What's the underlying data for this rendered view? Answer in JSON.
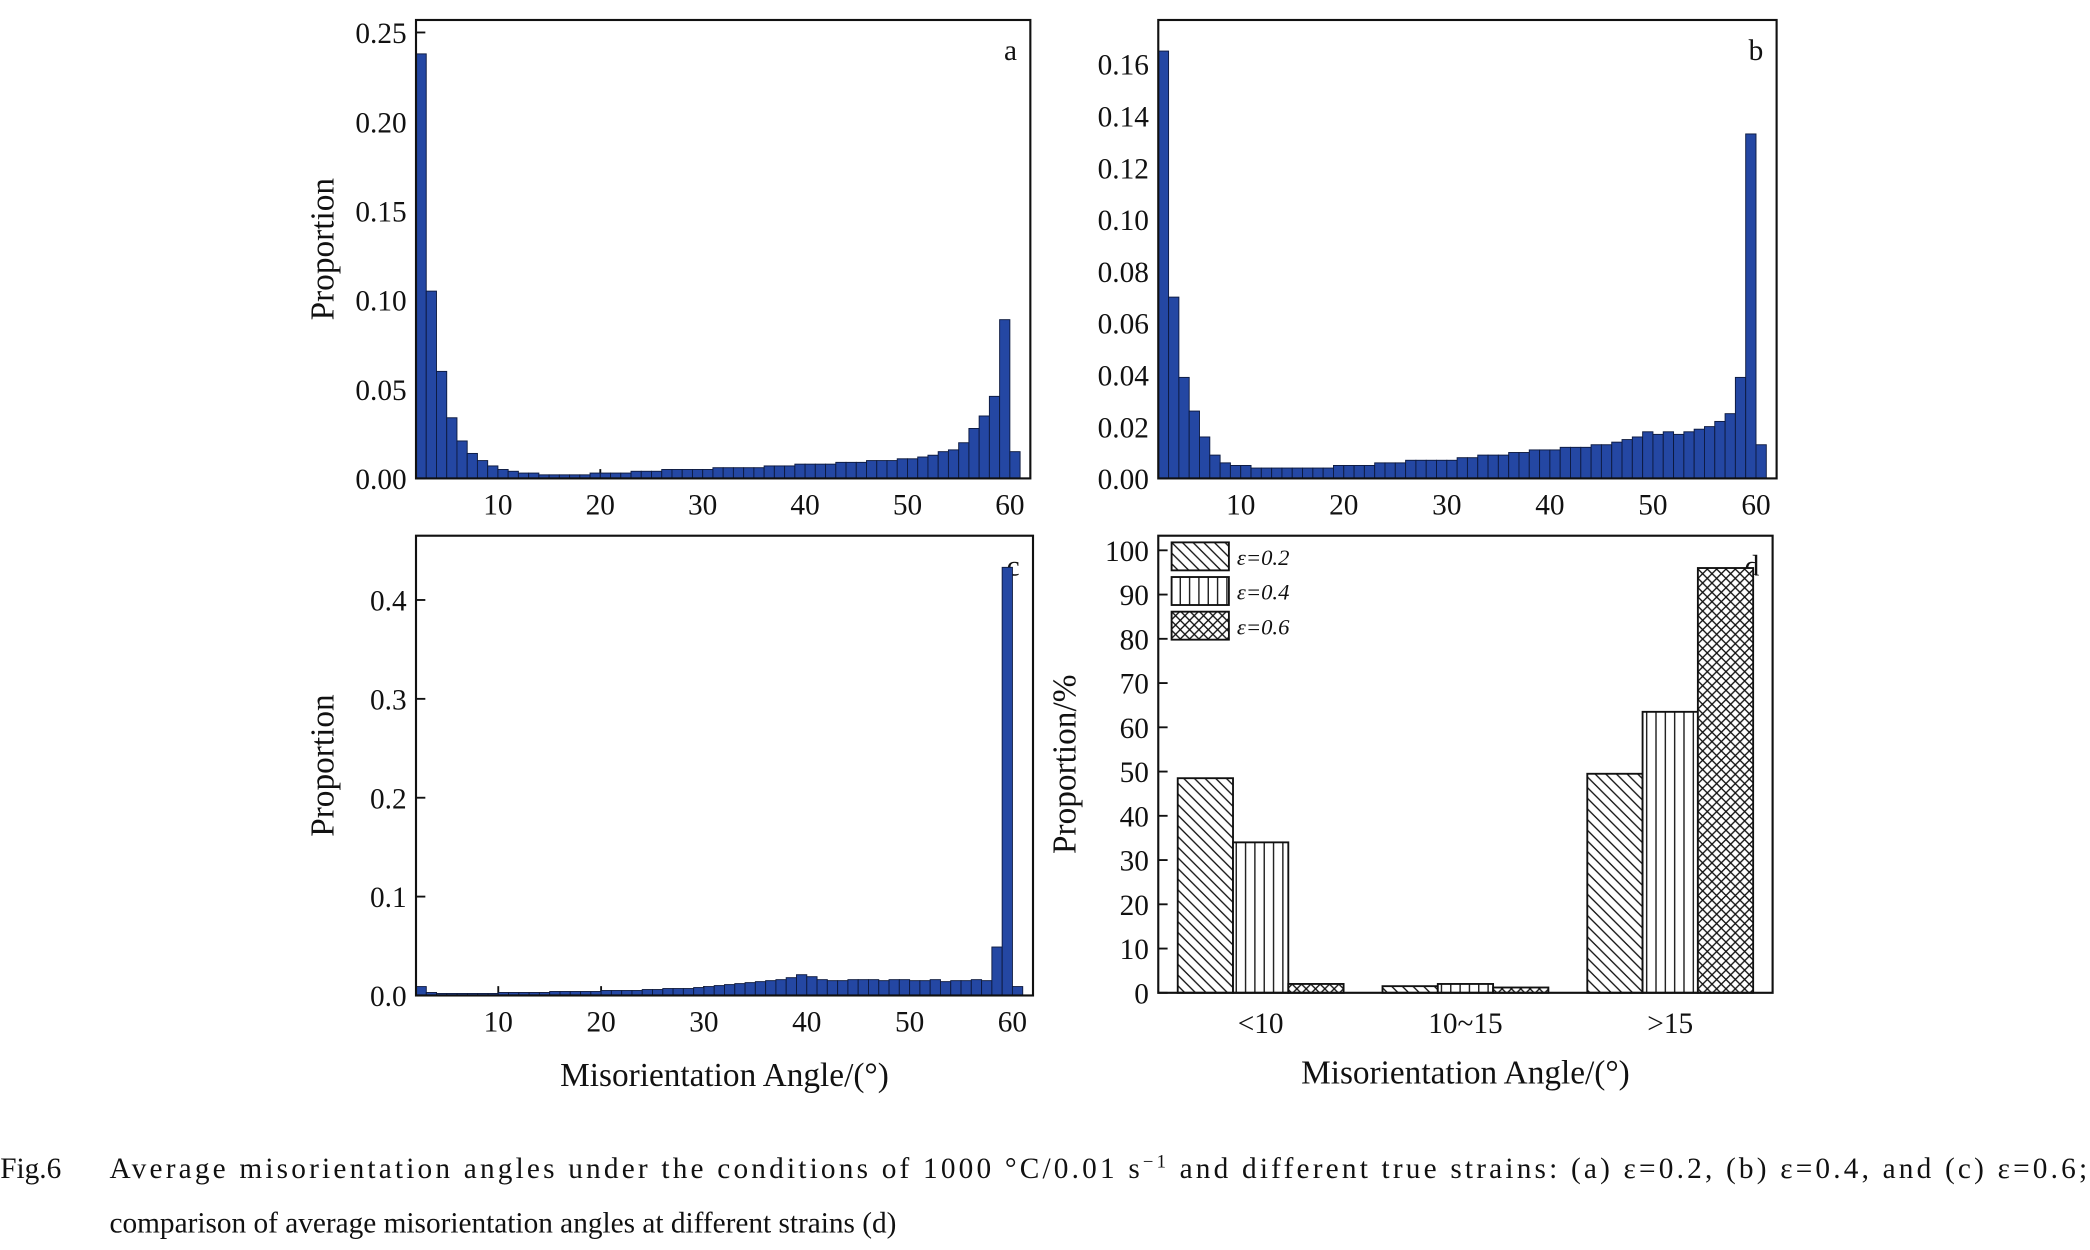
{
  "chart_data": [
    {
      "type": "histogram",
      "label": "a",
      "ylabel": "Proportion",
      "color": "#2447a3",
      "bins": [
        2,
        3,
        4,
        5,
        6,
        7,
        8,
        9,
        10,
        11,
        12,
        13,
        14,
        15,
        16,
        17,
        18,
        19,
        20,
        21,
        22,
        23,
        24,
        25,
        26,
        27,
        28,
        29,
        30,
        31,
        32,
        33,
        34,
        35,
        36,
        37,
        38,
        39,
        40,
        41,
        42,
        43,
        44,
        45,
        46,
        47,
        48,
        49,
        50,
        51,
        52,
        53,
        54,
        55,
        56,
        57,
        58,
        59,
        60,
        61
      ],
      "values": [
        0.238,
        0.105,
        0.06,
        0.034,
        0.021,
        0.014,
        0.01,
        0.007,
        0.005,
        0.004,
        0.003,
        0.003,
        0.002,
        0.002,
        0.002,
        0.002,
        0.002,
        0.003,
        0.003,
        0.003,
        0.003,
        0.004,
        0.004,
        0.004,
        0.005,
        0.005,
        0.005,
        0.005,
        0.005,
        0.006,
        0.006,
        0.006,
        0.006,
        0.006,
        0.007,
        0.007,
        0.007,
        0.008,
        0.008,
        0.008,
        0.008,
        0.009,
        0.009,
        0.009,
        0.01,
        0.01,
        0.01,
        0.011,
        0.011,
        0.012,
        0.013,
        0.015,
        0.016,
        0.02,
        0.028,
        0.035,
        0.046,
        0.089,
        0.015
      ],
      "xlim": [
        2,
        62
      ],
      "xticks": [
        10,
        20,
        30,
        40,
        50,
        60
      ],
      "ylim": [
        0,
        0.257
      ],
      "yticks": [
        {
          "value": 0,
          "label": "0.00"
        },
        {
          "value": 0.05,
          "label": "0.05"
        },
        {
          "value": 0.1,
          "label": "0.10"
        },
        {
          "value": 0.15,
          "label": "0.15"
        },
        {
          "value": 0.2,
          "label": "0.20"
        },
        {
          "value": 0.25,
          "label": "0.25"
        }
      ]
    },
    {
      "type": "histogram",
      "label": "b",
      "color": "#2447a3",
      "bins": [
        2,
        3,
        4,
        5,
        6,
        7,
        8,
        9,
        10,
        11,
        12,
        13,
        14,
        15,
        16,
        17,
        18,
        19,
        20,
        21,
        22,
        23,
        24,
        25,
        26,
        27,
        28,
        29,
        30,
        31,
        32,
        33,
        34,
        35,
        36,
        37,
        38,
        39,
        40,
        41,
        42,
        43,
        44,
        45,
        46,
        47,
        48,
        49,
        50,
        51,
        52,
        53,
        54,
        55,
        56,
        57,
        58,
        59,
        60,
        61
      ],
      "values": [
        0.165,
        0.07,
        0.039,
        0.026,
        0.016,
        0.009,
        0.006,
        0.005,
        0.005,
        0.004,
        0.004,
        0.004,
        0.004,
        0.004,
        0.004,
        0.004,
        0.004,
        0.005,
        0.005,
        0.005,
        0.005,
        0.006,
        0.006,
        0.006,
        0.007,
        0.007,
        0.007,
        0.007,
        0.007,
        0.008,
        0.008,
        0.009,
        0.009,
        0.009,
        0.01,
        0.01,
        0.011,
        0.011,
        0.011,
        0.012,
        0.012,
        0.012,
        0.013,
        0.013,
        0.014,
        0.015,
        0.016,
        0.018,
        0.017,
        0.018,
        0.017,
        0.018,
        0.019,
        0.02,
        0.022,
        0.025,
        0.039,
        0.133,
        0.013
      ],
      "xlim": [
        2,
        62
      ],
      "xticks": [
        10,
        20,
        30,
        40,
        50,
        60
      ],
      "ylim": [
        0,
        0.177
      ],
      "yticks": [
        {
          "value": 0,
          "label": "0.00"
        },
        {
          "value": 0.02,
          "label": "0.02"
        },
        {
          "value": 0.04,
          "label": "0.04"
        },
        {
          "value": 0.06,
          "label": "0.06"
        },
        {
          "value": 0.08,
          "label": "0.08"
        },
        {
          "value": 0.1,
          "label": "0.10"
        },
        {
          "value": 0.12,
          "label": "0.12"
        },
        {
          "value": 0.14,
          "label": "0.14"
        },
        {
          "value": 0.16,
          "label": "0.16"
        }
      ]
    },
    {
      "type": "histogram",
      "label": "c",
      "ylabel": "Proportion",
      "xlabel": "Misorientation Angle/(°)",
      "color": "#2447a3",
      "bins": [
        2,
        3,
        4,
        5,
        6,
        7,
        8,
        9,
        10,
        11,
        12,
        13,
        14,
        15,
        16,
        17,
        18,
        19,
        20,
        21,
        22,
        23,
        24,
        25,
        26,
        27,
        28,
        29,
        30,
        31,
        32,
        33,
        34,
        35,
        36,
        37,
        38,
        39,
        40,
        41,
        42,
        43,
        44,
        45,
        46,
        47,
        48,
        49,
        50,
        51,
        52,
        53,
        54,
        55,
        56,
        57,
        58,
        59,
        60,
        61
      ],
      "values": [
        0.009,
        0.003,
        0.002,
        0.002,
        0.002,
        0.002,
        0.002,
        0.002,
        0.003,
        0.003,
        0.003,
        0.003,
        0.003,
        0.004,
        0.004,
        0.004,
        0.004,
        0.004,
        0.005,
        0.005,
        0.005,
        0.005,
        0.006,
        0.006,
        0.007,
        0.007,
        0.007,
        0.008,
        0.009,
        0.01,
        0.011,
        0.012,
        0.013,
        0.014,
        0.015,
        0.016,
        0.018,
        0.021,
        0.019,
        0.016,
        0.015,
        0.015,
        0.016,
        0.016,
        0.016,
        0.015,
        0.016,
        0.016,
        0.015,
        0.015,
        0.016,
        0.014,
        0.015,
        0.015,
        0.016,
        0.015,
        0.049,
        0.433,
        0.009
      ],
      "xlim": [
        2,
        62
      ],
      "xticks": [
        10,
        20,
        30,
        40,
        50,
        60
      ],
      "ylim": [
        0,
        0.465
      ],
      "yticks": [
        {
          "value": 0,
          "label": "0.0"
        },
        {
          "value": 0.1,
          "label": "0.1"
        },
        {
          "value": 0.2,
          "label": "0.2"
        },
        {
          "value": 0.3,
          "label": "0.3"
        },
        {
          "value": 0.4,
          "label": "0.4"
        }
      ]
    },
    {
      "type": "bar",
      "label": "d",
      "ylabel": "Proportion/%",
      "xlabel": "Misorientation Angle/(°)",
      "legend": "upper left",
      "categories": [
        "<10",
        "10~15",
        ">15"
      ],
      "series": [
        {
          "name": "ε=0.2",
          "hatch": "diagonal",
          "values": [
            48.5,
            1.5,
            49.5
          ]
        },
        {
          "name": "ε=0.4",
          "hatch": "vertical",
          "values": [
            34,
            2,
            63.5
          ]
        },
        {
          "name": "ε=0.6",
          "hatch": "crosshatch",
          "values": [
            2,
            1.2,
            96
          ]
        }
      ],
      "ylim": [
        0,
        103.3
      ],
      "yticks": [
        0,
        10,
        20,
        30,
        40,
        50,
        60,
        70,
        80,
        90,
        100
      ]
    }
  ],
  "caption": {
    "label": "Fig.6",
    "parts": [
      "Average misorientation angles under the conditions of 1000 °C/0.01 s",
      "−1",
      " and different true strains: (a) ε=0.2, (b) ε=0.4, and (c) ε=0.6;"
    ],
    "line2": "comparison of average misorientation angles at different strains (d)"
  }
}
